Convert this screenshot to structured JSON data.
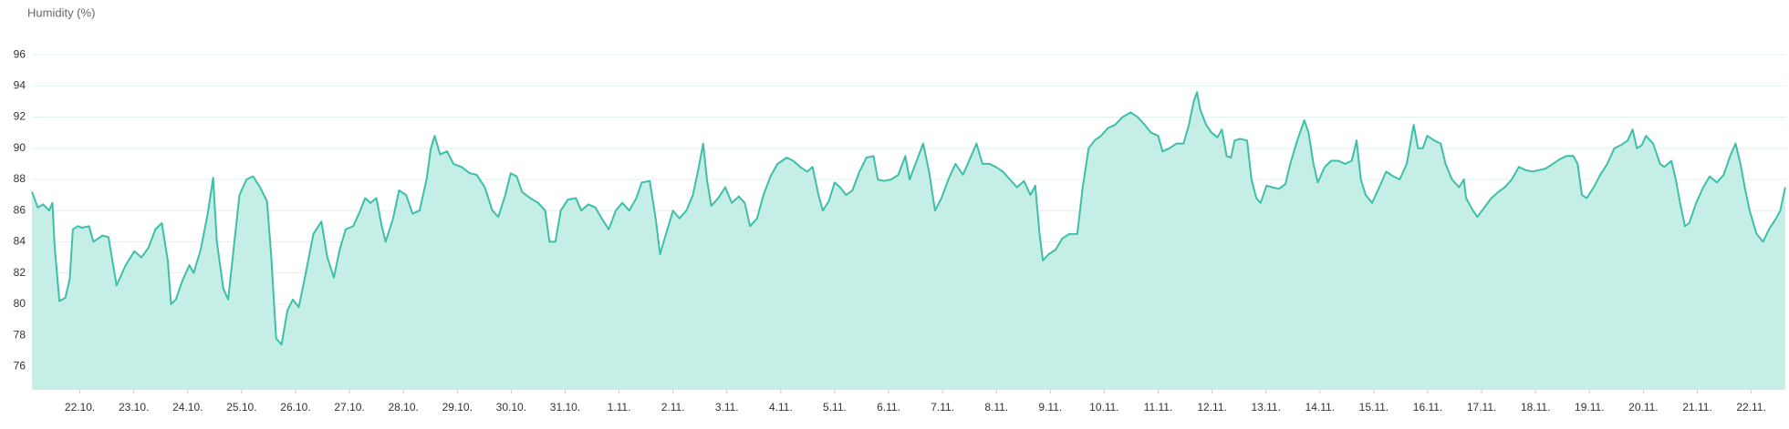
{
  "chart_data": {
    "type": "area",
    "title": "Humidity (%)",
    "color": "#3dbfa9",
    "fill_color": "#c5eee6",
    "grid": true,
    "ylim": [
      74.5,
      97
    ],
    "yticks": [
      76,
      78,
      80,
      82,
      84,
      86,
      88,
      90,
      92,
      94,
      96
    ],
    "xlim": [
      -0.89,
      31.65
    ],
    "xticks": [
      {
        "value": 0,
        "label": "22.10."
      },
      {
        "value": 1,
        "label": "23.10."
      },
      {
        "value": 2,
        "label": "24.10."
      },
      {
        "value": 3,
        "label": "25.10."
      },
      {
        "value": 4,
        "label": "26.10."
      },
      {
        "value": 5,
        "label": "27.10."
      },
      {
        "value": 6,
        "label": "28.10."
      },
      {
        "value": 7,
        "label": "29.10."
      },
      {
        "value": 8,
        "label": "30.10."
      },
      {
        "value": 9,
        "label": "31.10."
      },
      {
        "value": 10,
        "label": "1.11."
      },
      {
        "value": 11,
        "label": "2.11."
      },
      {
        "value": 12,
        "label": "3.11."
      },
      {
        "value": 13,
        "label": "4.11."
      },
      {
        "value": 14,
        "label": "5.11."
      },
      {
        "value": 15,
        "label": "6.11."
      },
      {
        "value": 16,
        "label": "7.11."
      },
      {
        "value": 17,
        "label": "8.11."
      },
      {
        "value": 18,
        "label": "9.11."
      },
      {
        "value": 19,
        "label": "10.11."
      },
      {
        "value": 20,
        "label": "11.11."
      },
      {
        "value": 21,
        "label": "12.11."
      },
      {
        "value": 22,
        "label": "13.11."
      },
      {
        "value": 23,
        "label": "14.11."
      },
      {
        "value": 24,
        "label": "15.11."
      },
      {
        "value": 25,
        "label": "16.11."
      },
      {
        "value": 26,
        "label": "17.11."
      },
      {
        "value": 27,
        "label": "18.11."
      },
      {
        "value": 28,
        "label": "19.11."
      },
      {
        "value": 29,
        "label": "20.11."
      },
      {
        "value": 30,
        "label": "21.11."
      },
      {
        "value": 31,
        "label": "22.11."
      }
    ],
    "x": [
      -0.89,
      -0.78,
      -0.68,
      -0.57,
      -0.51,
      -0.47,
      -0.38,
      -0.27,
      -0.19,
      -0.13,
      -0.04,
      0.04,
      0.17,
      0.25,
      0.42,
      0.53,
      0.68,
      0.85,
      1.01,
      1.14,
      1.27,
      1.4,
      1.52,
      1.63,
      1.69,
      1.78,
      1.9,
      2.03,
      2.11,
      2.24,
      2.37,
      2.47,
      2.54,
      2.66,
      2.75,
      2.85,
      2.96,
      3.09,
      3.21,
      3.34,
      3.47,
      3.55,
      3.64,
      3.74,
      3.85,
      3.95,
      4.06,
      4.19,
      4.33,
      4.48,
      4.59,
      4.71,
      4.82,
      4.93,
      5.07,
      5.2,
      5.29,
      5.39,
      5.5,
      5.6,
      5.67,
      5.81,
      5.92,
      6.05,
      6.17,
      6.3,
      6.43,
      6.51,
      6.58,
      6.68,
      6.81,
      6.93,
      7.08,
      7.23,
      7.36,
      7.51,
      7.65,
      7.76,
      7.89,
      7.99,
      8.1,
      8.2,
      8.35,
      8.5,
      8.63,
      8.71,
      8.82,
      8.92,
      9.05,
      9.2,
      9.3,
      9.43,
      9.56,
      9.68,
      9.81,
      9.94,
      10.06,
      10.19,
      10.32,
      10.42,
      10.57,
      10.68,
      10.76,
      10.87,
      11.0,
      11.12,
      11.25,
      11.37,
      11.48,
      11.56,
      11.63,
      11.71,
      11.84,
      11.97,
      12.09,
      12.22,
      12.33,
      12.43,
      12.56,
      12.68,
      12.81,
      12.94,
      13.11,
      13.23,
      13.36,
      13.49,
      13.59,
      13.7,
      13.78,
      13.89,
      14.0,
      14.1,
      14.21,
      14.33,
      14.46,
      14.59,
      14.72,
      14.8,
      14.91,
      15.05,
      15.18,
      15.31,
      15.39,
      15.52,
      15.64,
      15.75,
      15.86,
      15.98,
      16.11,
      16.24,
      16.38,
      16.53,
      16.63,
      16.74,
      16.87,
      16.99,
      17.12,
      17.25,
      17.38,
      17.51,
      17.63,
      17.72,
      17.8,
      17.86,
      17.97,
      18.1,
      18.22,
      18.35,
      18.5,
      18.6,
      18.71,
      18.82,
      18.94,
      19.07,
      19.2,
      19.34,
      19.49,
      19.62,
      19.75,
      19.87,
      20.0,
      20.08,
      20.21,
      20.34,
      20.47,
      20.57,
      20.66,
      20.72,
      20.78,
      20.89,
      20.99,
      21.1,
      21.18,
      21.27,
      21.35,
      21.42,
      21.52,
      21.65,
      21.73,
      21.82,
      21.9,
      22.01,
      22.11,
      22.24,
      22.36,
      22.45,
      22.58,
      22.71,
      22.79,
      22.88,
      22.96,
      23.09,
      23.21,
      23.34,
      23.47,
      23.59,
      23.68,
      23.76,
      23.85,
      23.97,
      24.1,
      24.23,
      24.36,
      24.48,
      24.61,
      24.74,
      24.82,
      24.91,
      24.99,
      25.12,
      25.24,
      25.33,
      25.45,
      25.58,
      25.67,
      25.71,
      25.84,
      25.92,
      26.05,
      26.18,
      26.31,
      26.43,
      26.56,
      26.69,
      26.81,
      26.94,
      27.07,
      27.19,
      27.32,
      27.45,
      27.57,
      27.7,
      27.78,
      27.86,
      27.95,
      28.08,
      28.2,
      28.33,
      28.46,
      28.58,
      28.71,
      28.8,
      28.88,
      28.97,
      29.05,
      29.18,
      29.31,
      29.39,
      29.52,
      29.6,
      29.68,
      29.77,
      29.85,
      29.98,
      30.11,
      30.23,
      30.36,
      30.49,
      30.61,
      30.71,
      30.8,
      30.88,
      30.97,
      31.1,
      31.22,
      31.33,
      31.46,
      31.54,
      31.63
    ],
    "values": [
      87.2,
      86.2,
      86.4,
      86.0,
      86.5,
      83.8,
      80.2,
      80.4,
      81.6,
      84.8,
      85.0,
      84.9,
      85.0,
      84.0,
      84.4,
      84.3,
      81.2,
      82.5,
      83.4,
      83.0,
      83.6,
      84.8,
      85.2,
      82.8,
      80.0,
      80.3,
      81.5,
      82.5,
      82.0,
      83.5,
      85.8,
      88.1,
      84.0,
      81.0,
      80.3,
      83.5,
      87.0,
      88.0,
      88.2,
      87.5,
      86.6,
      83.0,
      77.8,
      77.4,
      79.6,
      80.3,
      79.8,
      82.0,
      84.5,
      85.3,
      83.0,
      81.7,
      83.5,
      84.8,
      85.0,
      86.0,
      86.8,
      86.5,
      86.8,
      85.0,
      84.0,
      85.5,
      87.3,
      87.0,
      85.8,
      86.0,
      88.0,
      90.0,
      90.8,
      89.6,
      89.8,
      89.0,
      88.8,
      88.4,
      88.3,
      87.5,
      86.0,
      85.6,
      87.0,
      88.4,
      88.2,
      87.2,
      86.8,
      86.5,
      86.0,
      84.0,
      84.0,
      86.0,
      86.7,
      86.8,
      86.0,
      86.4,
      86.2,
      85.5,
      84.8,
      86.0,
      86.5,
      86.0,
      86.8,
      87.8,
      87.9,
      85.5,
      83.2,
      84.5,
      86.0,
      85.5,
      86.0,
      87.0,
      88.8,
      90.3,
      88.0,
      86.3,
      86.8,
      87.5,
      86.5,
      86.9,
      86.5,
      85.0,
      85.5,
      87.0,
      88.2,
      89.0,
      89.4,
      89.2,
      88.8,
      88.5,
      88.8,
      87.0,
      86.0,
      86.6,
      87.8,
      87.5,
      87.0,
      87.3,
      88.5,
      89.4,
      89.5,
      88.0,
      87.9,
      88.0,
      88.3,
      89.5,
      88.0,
      89.2,
      90.3,
      88.5,
      86.0,
      86.8,
      88.0,
      89.0,
      88.3,
      89.5,
      90.3,
      89.0,
      89.0,
      88.8,
      88.5,
      88.0,
      87.5,
      87.9,
      87.0,
      87.6,
      84.5,
      82.8,
      83.2,
      83.5,
      84.2,
      84.5,
      84.5,
      87.5,
      90.0,
      90.5,
      90.8,
      91.3,
      91.5,
      92.0,
      92.3,
      92.0,
      91.5,
      91.0,
      90.8,
      89.8,
      90.0,
      90.3,
      90.3,
      91.5,
      93.0,
      93.6,
      92.5,
      91.5,
      91.0,
      90.7,
      91.2,
      89.5,
      89.4,
      90.5,
      90.6,
      90.5,
      88.0,
      86.8,
      86.5,
      87.6,
      87.5,
      87.4,
      87.7,
      89.0,
      90.5,
      91.8,
      91.0,
      89.0,
      87.8,
      88.8,
      89.2,
      89.2,
      89.0,
      89.2,
      90.5,
      88.0,
      87.0,
      86.5,
      87.5,
      88.5,
      88.2,
      88.0,
      89.0,
      91.5,
      90.0,
      90.0,
      90.8,
      90.5,
      90.3,
      89.0,
      88.0,
      87.5,
      88.0,
      86.8,
      86.0,
      85.6,
      86.2,
      86.8,
      87.2,
      87.5,
      88.0,
      88.8,
      88.6,
      88.5,
      88.6,
      88.7,
      89.0,
      89.3,
      89.5,
      89.5,
      89.0,
      87.0,
      86.8,
      87.5,
      88.3,
      89.0,
      90.0,
      90.2,
      90.5,
      91.2,
      90.0,
      90.2,
      90.8,
      90.3,
      89.0,
      88.8,
      89.2,
      88.0,
      86.5,
      85.0,
      85.2,
      86.5,
      87.5,
      88.2,
      87.8,
      88.3,
      89.5,
      90.3,
      89.0,
      87.5,
      86.0,
      84.5,
      84.0,
      84.8,
      85.5,
      86.0,
      87.5
    ]
  }
}
